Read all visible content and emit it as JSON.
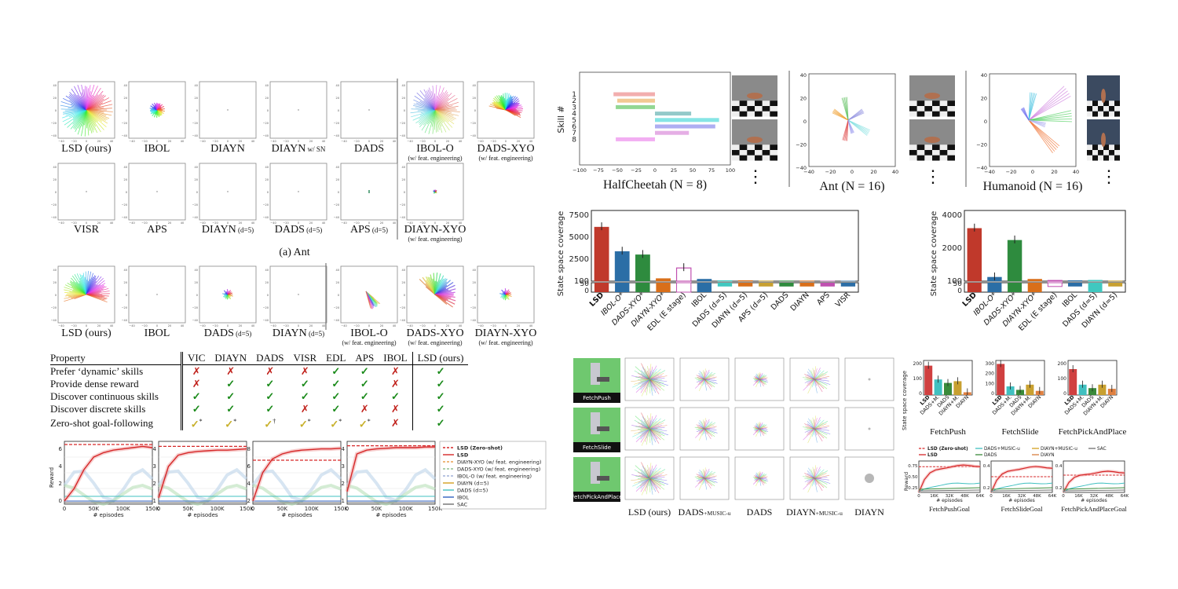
{
  "ant_panel": {
    "row1_labels": [
      {
        "main": "LSD (ours)",
        "sub": ""
      },
      {
        "main": "IBOL",
        "sub": ""
      },
      {
        "main": "DIAYN",
        "sub": ""
      },
      {
        "main": "DIAYN",
        "sub": "w/ SN"
      },
      {
        "main": "DADS",
        "sub": ""
      },
      {
        "main": "IBOL-O",
        "sub": "(w/ feat. engineering)"
      },
      {
        "main": "DADS-XYO",
        "sub": "(w/ feat. engineering)"
      }
    ],
    "row2_labels": [
      {
        "main": "VISR",
        "sub": ""
      },
      {
        "main": "APS",
        "sub": ""
      },
      {
        "main": "DIAYN",
        "sub": "(d=5)"
      },
      {
        "main": "DADS",
        "sub": "(d=5)"
      },
      {
        "main": "APS",
        "sub": "(d=5)"
      },
      {
        "main": "DIAYN-XYO",
        "sub": "(w/ feat. engineering)"
      }
    ],
    "caption": "(a) Ant"
  },
  "humanoid_panel": {
    "labels": [
      {
        "main": "LSD (ours)",
        "sub": ""
      },
      {
        "main": "IBOL",
        "sub": ""
      },
      {
        "main": "DADS",
        "sub": "(d=5)"
      },
      {
        "main": "DIAYN",
        "sub": "(d=5)"
      },
      {
        "main": "IBOL-O",
        "sub": "(w/ feat. engineering)"
      },
      {
        "main": "DADS-XYO",
        "sub": "(w/ feat. engineering)"
      },
      {
        "main": "DIAYN-XYO",
        "sub": "(w/ feat. engineering)"
      }
    ]
  },
  "property_table": {
    "header": [
      "Property",
      "VIC",
      "DIAYN",
      "DADS",
      "VISR",
      "EDL",
      "APS",
      "IBOL",
      "LSD (ours)"
    ],
    "rows": [
      {
        "label": "Prefer ‘dynamic’ skills",
        "cells": [
          "✗",
          "✗",
          "✗",
          "✗",
          "✓",
          "✓",
          "✗",
          "✓"
        ]
      },
      {
        "label": "Provide dense reward",
        "cells": [
          "✗",
          "✓",
          "✓",
          "✓",
          "✓",
          "✓",
          "✗",
          "✓"
        ]
      },
      {
        "label": "Discover continuous skills",
        "cells": [
          "✓",
          "✓",
          "✓",
          "✓",
          "✓",
          "✓",
          "✓",
          "✓"
        ]
      },
      {
        "label": "Discover discrete skills",
        "cells": [
          "✓",
          "✓",
          "✓",
          "✗",
          "✓",
          "✗",
          "✗",
          "✓"
        ]
      },
      {
        "label": "Zero-shot goal-following",
        "cells": [
          "✓*",
          "✓*",
          "✓†",
          "✓*",
          "✓*",
          "✓*",
          "✗",
          "✓"
        ]
      }
    ]
  },
  "reward_charts": {
    "ylabel": "Reward",
    "xlabel": "# episodes",
    "xticks": [
      "0",
      "50K",
      "100K",
      "150K"
    ],
    "yticks": [
      [
        "6",
        "4",
        "2",
        "0"
      ],
      [
        "4",
        "3",
        "2",
        "1"
      ],
      [
        "8",
        "6",
        "4",
        "2"
      ],
      [
        "4",
        "3",
        "2",
        "1"
      ]
    ],
    "legend": [
      {
        "name": "LSD (Zero-shot)",
        "color": "#d62728",
        "dash": true,
        "bold": true
      },
      {
        "name": "LSD",
        "color": "#d62728",
        "dash": false,
        "bold": true
      },
      {
        "name": "DIAYN-XYO (w/ feat. engineering)",
        "color": "#e8a050",
        "dash": true,
        "bold": false
      },
      {
        "name": "DADS-XYO (w/ feat. engineering)",
        "color": "#90c090",
        "dash": true,
        "bold": false
      },
      {
        "name": "IBOL-O (w/ feat. engineering)",
        "color": "#a0b0d8",
        "dash": true,
        "bold": false
      },
      {
        "name": "DIAYN (d=5)",
        "color": "#d4a020",
        "dash": false,
        "bold": false
      },
      {
        "name": "DADS (d=5)",
        "color": "#40c0c0",
        "dash": false,
        "bold": false
      },
      {
        "name": "IBOL",
        "color": "#3060c0",
        "dash": false,
        "bold": false
      },
      {
        "name": "SAC",
        "color": "#707070",
        "dash": false,
        "bold": false
      }
    ]
  },
  "mujoco_panel": {
    "halfcheetah": {
      "ylabel": "Skill #",
      "yticks": [
        "1",
        "2",
        "3",
        "4",
        "5",
        "6",
        "7",
        "8"
      ],
      "xticks": [
        "−100",
        "−75",
        "−50",
        "−25",
        "0",
        "25",
        "50",
        "75",
        "100"
      ],
      "caption": "HalfCheetah (N = 8)"
    },
    "ant": {
      "xticks": [
        "−40",
        "−20",
        "0",
        "20",
        "40"
      ],
      "yticks": [
        "40",
        "20",
        "0",
        "−20",
        "−40"
      ],
      "caption": "Ant (N = 16)"
    },
    "humanoid": {
      "xticks": [
        "−40",
        "−20",
        "0",
        "20",
        "40"
      ],
      "yticks": [
        "40",
        "20",
        "0",
        "−20",
        "−40"
      ],
      "caption": "Humanoid (N = 16)"
    },
    "ellipsis": "⋮"
  },
  "coverage_ant": {
    "ylabel": "State space coverage",
    "yticks_upper": [
      "7500",
      "5000",
      "2500",
      "100"
    ],
    "yticks_lower": [
      "50",
      "0"
    ],
    "categories": [
      "LSD",
      "IBOL-O*",
      "DADS-XYO*",
      "DIAYN-XYO*",
      "EDL (E stage)",
      "IBOL",
      "DADS (d=5)",
      "DIAYN (d=5)",
      "APS (d=5)",
      "DADS",
      "DIAYN",
      "APS",
      "VISR"
    ]
  },
  "coverage_humanoid": {
    "ylabel": "State space coverage",
    "yticks_upper": [
      "4000",
      "2000",
      "100"
    ],
    "yticks_lower": [
      "50",
      "0"
    ],
    "categories": [
      "LSD",
      "IBOL-O*",
      "DADS-XYO*",
      "DIAYN-XYO*",
      "EDL (E stage)",
      "IBOL",
      "DADS (d=5)",
      "DIAYN (d=5)"
    ]
  },
  "fetch_panel": {
    "rows": [
      "FetchPush",
      "FetchSlide",
      "FetchPickAndPlace"
    ],
    "columns": [
      {
        "main": "LSD (ours)",
        "sub": ""
      },
      {
        "main": "DADS",
        "sub": "+MUSIC-u"
      },
      {
        "main": "DADS",
        "sub": ""
      },
      {
        "main": "DIAYN",
        "sub": "+MUSIC-u"
      },
      {
        "main": "DIAYN",
        "sub": ""
      }
    ]
  },
  "fetch_coverage": {
    "ylabel": "State space coverage",
    "charts": [
      {
        "title": "FetchPush",
        "yticks": [
          "200",
          "100",
          "0"
        ],
        "categories": [
          "LSD",
          "DADS+M.",
          "DADS",
          "DIAYN+M.",
          "DIAYN"
        ]
      },
      {
        "title": "FetchSlide",
        "yticks": [
          "300",
          "200",
          "100",
          "0"
        ],
        "categories": [
          "LSD",
          "DADS+M.",
          "DADS",
          "DIAYN+M.",
          "DIAYN"
        ]
      },
      {
        "title": "FetchPickAndPlace",
        "yticks": [
          "200",
          "100",
          "0"
        ],
        "categories": [
          "LSD",
          "DADS+M.",
          "DADS",
          "DIAYN+M.",
          "DIAYN"
        ]
      }
    ]
  },
  "fetch_goal": {
    "legend": [
      {
        "name": "LSD (Zero-shot)",
        "color": "#d62728",
        "dash": true,
        "bold": true
      },
      {
        "name": "DADS+MUSIC-u",
        "color": "#40c0c0",
        "dash": false,
        "bold": false
      },
      {
        "name": "DIAYN+MUSIC-u",
        "color": "#d4a020",
        "dash": false,
        "bold": false
      },
      {
        "name": "SAC",
        "color": "#707070",
        "dash": false,
        "bold": false
      },
      {
        "name": "LSD",
        "color": "#d62728",
        "dash": false,
        "bold": true
      },
      {
        "name": "DADS",
        "color": "#3a8a3a",
        "dash": false,
        "bold": false
      },
      {
        "name": "DIAYN",
        "color": "#d88040",
        "dash": false,
        "bold": false
      }
    ],
    "ylabel": "Reward",
    "xlabel": "# episodes",
    "xticks": [
      "0",
      "16K",
      "32K",
      "48K",
      "64K"
    ],
    "charts": [
      {
        "title": "FetchPushGoal",
        "yticks": [
          "0.75",
          "0.50",
          "0.25"
        ]
      },
      {
        "title": "FetchSlideGoal",
        "yticks": [
          "0.4",
          "0.2"
        ]
      },
      {
        "title": "FetchPickAndPlaceGoal",
        "yticks": [
          "0.4",
          "0.2"
        ]
      }
    ]
  },
  "colors": {
    "lsd": "#c0392b",
    "ibol": "#2b6ea6",
    "dads": "#2e8b3e",
    "diayn": "#d96f1a",
    "edl": "#c050b0",
    "cyan": "#40c8c0",
    "gold": "#c8a030"
  }
}
